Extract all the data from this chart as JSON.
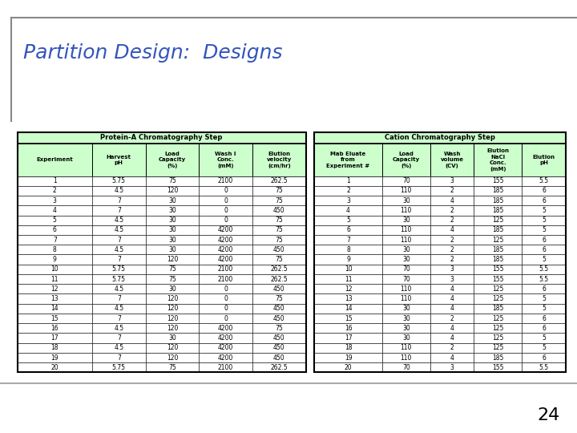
{
  "title": "Partition Design:  Designs",
  "title_color": "#3355BB",
  "title_fontsize": 18,
  "page_number": "24",
  "table1_title": "Protein-A Chromatography Step",
  "table1_headers": [
    "Experiment",
    "Harvest\npH",
    "Load\nCapacity\n(%)",
    "Wash I\nConc.\n(mM)",
    "Elution\nvelocity\n(cm/hr)"
  ],
  "table1_data": [
    [
      "1",
      "5.75",
      "75",
      "2100",
      "262.5"
    ],
    [
      "2",
      "4.5",
      "120",
      "0",
      "75"
    ],
    [
      "3",
      "7",
      "30",
      "0",
      "75"
    ],
    [
      "4",
      "7",
      "30",
      "0",
      "450"
    ],
    [
      "5",
      "4.5",
      "30",
      "0",
      "75"
    ],
    [
      "6",
      "4.5",
      "30",
      "4200",
      "75"
    ],
    [
      "7",
      "7",
      "30",
      "4200",
      "75"
    ],
    [
      "8",
      "4.5",
      "30",
      "4200",
      "450"
    ],
    [
      "9",
      "7",
      "120",
      "4200",
      "75"
    ],
    [
      "10",
      "5.75",
      "75",
      "2100",
      "262.5"
    ],
    [
      "11",
      "5.75",
      "75",
      "2100",
      "262.5"
    ],
    [
      "12",
      "4.5",
      "30",
      "0",
      "450"
    ],
    [
      "13",
      "7",
      "120",
      "0",
      "75"
    ],
    [
      "14",
      "4.5",
      "120",
      "0",
      "450"
    ],
    [
      "15",
      "7",
      "120",
      "0",
      "450"
    ],
    [
      "16",
      "4.5",
      "120",
      "4200",
      "75"
    ],
    [
      "17",
      "7",
      "30",
      "4200",
      "450"
    ],
    [
      "18",
      "4.5",
      "120",
      "4200",
      "450"
    ],
    [
      "19",
      "7",
      "120",
      "4200",
      "450"
    ],
    [
      "20",
      "5.75",
      "75",
      "2100",
      "262.5"
    ]
  ],
  "table2_title": "Cation Chromatography Step",
  "table2_headers": [
    "Mab Eluate\nfrom\nExperiment #",
    "Load\nCapacity\n(%)",
    "Wash\nvolume\n(CV)",
    "Elution\nNaCl\nConc.\n(mM)",
    "Elution\npH"
  ],
  "table2_data": [
    [
      "1",
      "70",
      "3",
      "155",
      "5.5"
    ],
    [
      "2",
      "110",
      "2",
      "185",
      "6"
    ],
    [
      "3",
      "30",
      "4",
      "185",
      "6"
    ],
    [
      "4",
      "110",
      "2",
      "185",
      "5"
    ],
    [
      "5",
      "30",
      "2",
      "125",
      "5"
    ],
    [
      "6",
      "110",
      "4",
      "185",
      "5"
    ],
    [
      "7",
      "110",
      "2",
      "125",
      "6"
    ],
    [
      "8",
      "30",
      "2",
      "185",
      "6"
    ],
    [
      "9",
      "30",
      "2",
      "185",
      "5"
    ],
    [
      "10",
      "70",
      "3",
      "155",
      "5.5"
    ],
    [
      "11",
      "70",
      "3",
      "155",
      "5.5"
    ],
    [
      "12",
      "110",
      "4",
      "125",
      "6"
    ],
    [
      "13",
      "110",
      "4",
      "125",
      "5"
    ],
    [
      "14",
      "30",
      "4",
      "185",
      "5"
    ],
    [
      "15",
      "30",
      "2",
      "125",
      "6"
    ],
    [
      "16",
      "30",
      "4",
      "125",
      "6"
    ],
    [
      "17",
      "30",
      "4",
      "125",
      "5"
    ],
    [
      "18",
      "110",
      "2",
      "125",
      "5"
    ],
    [
      "19",
      "110",
      "4",
      "185",
      "6"
    ],
    [
      "20",
      "70",
      "3",
      "155",
      "5.5"
    ]
  ],
  "header_bg": "#CCFFCC",
  "title_bg": "#CCFFCC",
  "border_color": "#000000",
  "text_color": "#000000",
  "background": "#FFFFFF",
  "top_bar_color": "#888888",
  "bottom_bar_color": "#AAAAAA",
  "col_widths_1": [
    1.4,
    1.0,
    1.0,
    1.0,
    1.0
  ],
  "col_widths_2": [
    1.4,
    1.0,
    0.9,
    1.0,
    0.9
  ]
}
